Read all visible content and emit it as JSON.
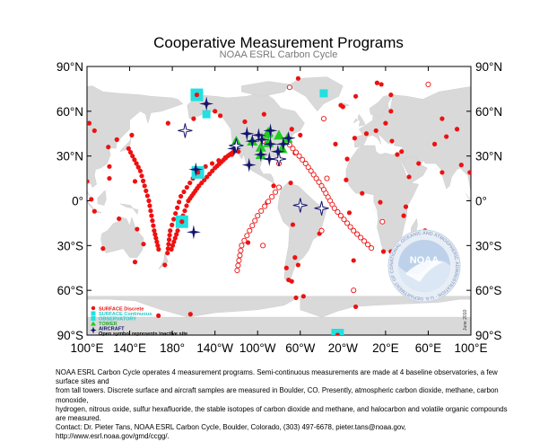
{
  "title": "Cooperative Measurement Programs",
  "subtitle": "NOAA ESRL Carbon Cycle",
  "lat_labels_left": [
    "90°N",
    "60°N",
    "30°N",
    "0°",
    "30°S",
    "60°S",
    "90°S"
  ],
  "lat_labels_right": [
    "90°N",
    "60°N",
    "30°N",
    "0°",
    "30°S",
    "60°S",
    "90°S"
  ],
  "lon_labels": [
    "100°E",
    "140°E",
    "180°",
    "140°W",
    "100°W",
    "60°W",
    "20°W",
    "20°E",
    "60°E",
    "100°E"
  ],
  "legend": {
    "surface_discrete": "SURFACE Discrete",
    "surface_continuous": "SURFACE Continuous",
    "observatory": "OBSERVATORY",
    "tower": "TOWER",
    "aircraft": "AIRCRAFT",
    "inactive": "Open symbol represents inactive site"
  },
  "logo_text": "NOAA",
  "logo_ring_text": "NATIONAL OCEANIC AND ATMOSPHERIC ADMINISTRATION · U.S. DEPARTMENT OF COMMERCE",
  "date_note": "June 2010",
  "caption": {
    "line1": "NOAA ESRL Carbon Cycle operates 4 measurement programs.  Semi-continuous measurements are made at 4 baseline observatories, a few surface sites and",
    "line2": "from tall towers.  Discrete surface and aircraft samples are measured in Boulder, CO.  Presently, atmospheric carbon dioxide, methane, carbon monoxide,",
    "line3": "hydrogen, nitrous oxide, sulfur hexafluoride, the stable isotopes of carbon dioxide and methane, and halocarbon and volatile organic compounds are measured.",
    "line4": "Contact:  Dr. Pieter Tans, NOAA ESRL Carbon Cycle, Boulder, Colorado, (303) 497-6678, pieter.tans@noaa.gov, http://www.esrl.noaa.gov/gmd/ccgg/."
  },
  "colors": {
    "surface": "#ee1111",
    "continuous": "#22e0e0",
    "tower": "#22cc22",
    "aircraft": "#141470",
    "land": "#d9d9d9",
    "ocean": "#ffffff"
  },
  "sites": {
    "surface": [
      [
        41,
        -71
      ],
      [
        28,
        -16
      ],
      [
        14,
        -17
      ],
      [
        -8,
        -14
      ],
      [
        64,
        -22
      ],
      [
        63,
        -20
      ],
      [
        70,
        -8
      ],
      [
        79,
        12
      ],
      [
        78,
        16
      ],
      [
        71,
        25
      ],
      [
        60,
        25
      ],
      [
        52,
        20
      ],
      [
        47,
        11
      ],
      [
        45,
        2
      ],
      [
        42,
        -9
      ],
      [
        38,
        -27
      ],
      [
        40,
        26
      ],
      [
        33,
        35
      ],
      [
        31,
        31
      ],
      [
        25,
        51
      ],
      [
        16,
        42
      ],
      [
        5,
        -2
      ],
      [
        -4,
        39
      ],
      [
        -1,
        15
      ],
      [
        -10,
        37
      ],
      [
        -20,
        57
      ],
      [
        -34,
        18
      ],
      [
        -34,
        25
      ],
      [
        -40,
        -10
      ],
      [
        -45,
        -73
      ],
      [
        -41,
        145
      ],
      [
        -43,
        -62
      ],
      [
        -32,
        115
      ],
      [
        -29,
        153
      ],
      [
        -19,
        147
      ],
      [
        -12,
        130
      ],
      [
        19,
        99
      ],
      [
        13,
        100
      ],
      [
        1,
        104
      ],
      [
        36,
        120
      ],
      [
        41,
        128
      ],
      [
        44,
        142
      ],
      [
        48,
        87
      ],
      [
        52,
        102
      ],
      [
        55,
        73
      ],
      [
        47,
        107
      ],
      [
        43,
        77
      ],
      [
        24,
        91
      ],
      [
        19,
        73
      ],
      [
        23,
        121
      ],
      [
        15,
        121
      ],
      [
        -7,
        107
      ],
      [
        38,
        66
      ],
      [
        71,
        -156
      ],
      [
        65,
        -148
      ],
      [
        55,
        -160
      ],
      [
        57,
        -135
      ],
      [
        52,
        176
      ],
      [
        19,
        -155
      ],
      [
        13,
        145
      ],
      [
        -14,
        -171
      ],
      [
        -43,
        173
      ],
      [
        -54,
        -68
      ],
      [
        -65,
        -64
      ],
      [
        -76,
        -163
      ],
      [
        -71,
        -8
      ],
      [
        -64,
        -57
      ],
      [
        -53,
        -71
      ],
      [
        -38,
        -65
      ],
      [
        -22,
        -42
      ],
      [
        -3,
        -60
      ],
      [
        -16,
        -67
      ],
      [
        12,
        -69
      ],
      [
        10,
        -85
      ],
      [
        -28,
        -109
      ],
      [
        -1,
        -91
      ],
      [
        32,
        -65
      ],
      [
        44,
        -60
      ],
      [
        48,
        -68
      ],
      [
        53,
        -112
      ],
      [
        58,
        -94
      ],
      [
        82,
        -62
      ],
      [
        60,
        -140
      ],
      [
        -77,
        167
      ],
      [
        -90,
        -25
      ]
    ],
    "inactive": [
      [
        76,
        -70
      ],
      [
        40,
        -95
      ],
      [
        25,
        -80
      ],
      [
        15,
        -35
      ],
      [
        -20,
        -40
      ],
      [
        55,
        -38
      ],
      [
        -14,
        17
      ],
      [
        -30,
        -95
      ],
      [
        -60,
        -10
      ],
      [
        78,
        60
      ]
    ],
    "ship_route_pacific": [
      [
        33,
        -118
      ],
      [
        21,
        -155
      ],
      [
        3,
        -172
      ],
      [
        -20,
        178
      ],
      [
        -38,
        175
      ]
    ],
    "ship_route_pacific2": [
      [
        34,
        -120
      ],
      [
        30,
        -128
      ],
      [
        22,
        -140
      ],
      [
        10,
        -155
      ],
      [
        0,
        -165
      ],
      [
        -20,
        -175
      ],
      [
        -35,
        178
      ]
    ],
    "ship_route_asia": [
      [
        35,
        139
      ],
      [
        20,
        150
      ],
      [
        0,
        158
      ],
      [
        -20,
        163
      ],
      [
        -35,
        168
      ]
    ],
    "ship_route_atlantic": [
      [
        40,
        -73
      ],
      [
        25,
        -55
      ],
      [
        10,
        -40
      ],
      [
        -5,
        -28
      ],
      [
        -20,
        -10
      ],
      [
        -34,
        10
      ]
    ],
    "ship_route_pac_sa": [
      [
        9,
        -80
      ],
      [
        -10,
        -100
      ],
      [
        -30,
        -115
      ],
      [
        -50,
        -120
      ]
    ],
    "continuous": [
      [
        72,
        -38
      ],
      [
        71,
        -157
      ],
      [
        -90,
        -25
      ],
      [
        20,
        -156
      ],
      [
        -14,
        -171
      ],
      [
        58,
        -148
      ]
    ],
    "observatory": [
      [
        71,
        -157
      ],
      [
        19,
        -156
      ],
      [
        -14,
        -171
      ],
      [
        -90,
        -25
      ]
    ],
    "tower": [
      [
        40,
        -105
      ],
      [
        45,
        -91
      ],
      [
        46,
        -90
      ],
      [
        36,
        -97
      ],
      [
        31,
        -97
      ],
      [
        42,
        -72
      ],
      [
        35,
        -77
      ],
      [
        44,
        -80
      ],
      [
        39,
        -90
      ],
      [
        40,
        -120
      ]
    ],
    "aircraft": [
      [
        65,
        -148
      ],
      [
        47,
        -88
      ],
      [
        44,
        -99
      ],
      [
        45,
        -110
      ],
      [
        40,
        -105
      ],
      [
        41,
        -96
      ],
      [
        38,
        -88
      ],
      [
        33,
        -81
      ],
      [
        38,
        -76
      ],
      [
        42,
        -71
      ],
      [
        31,
        -97
      ],
      [
        28,
        -89
      ],
      [
        24,
        -108
      ],
      [
        35,
        -122
      ],
      [
        21,
        -158
      ],
      [
        -21,
        -160
      ]
    ],
    "aircraft_inactive": [
      [
        47,
        -168
      ],
      [
        -3,
        -60
      ],
      [
        -5,
        -40
      ],
      [
        37,
        -120
      ],
      [
        28,
        -80
      ]
    ]
  }
}
